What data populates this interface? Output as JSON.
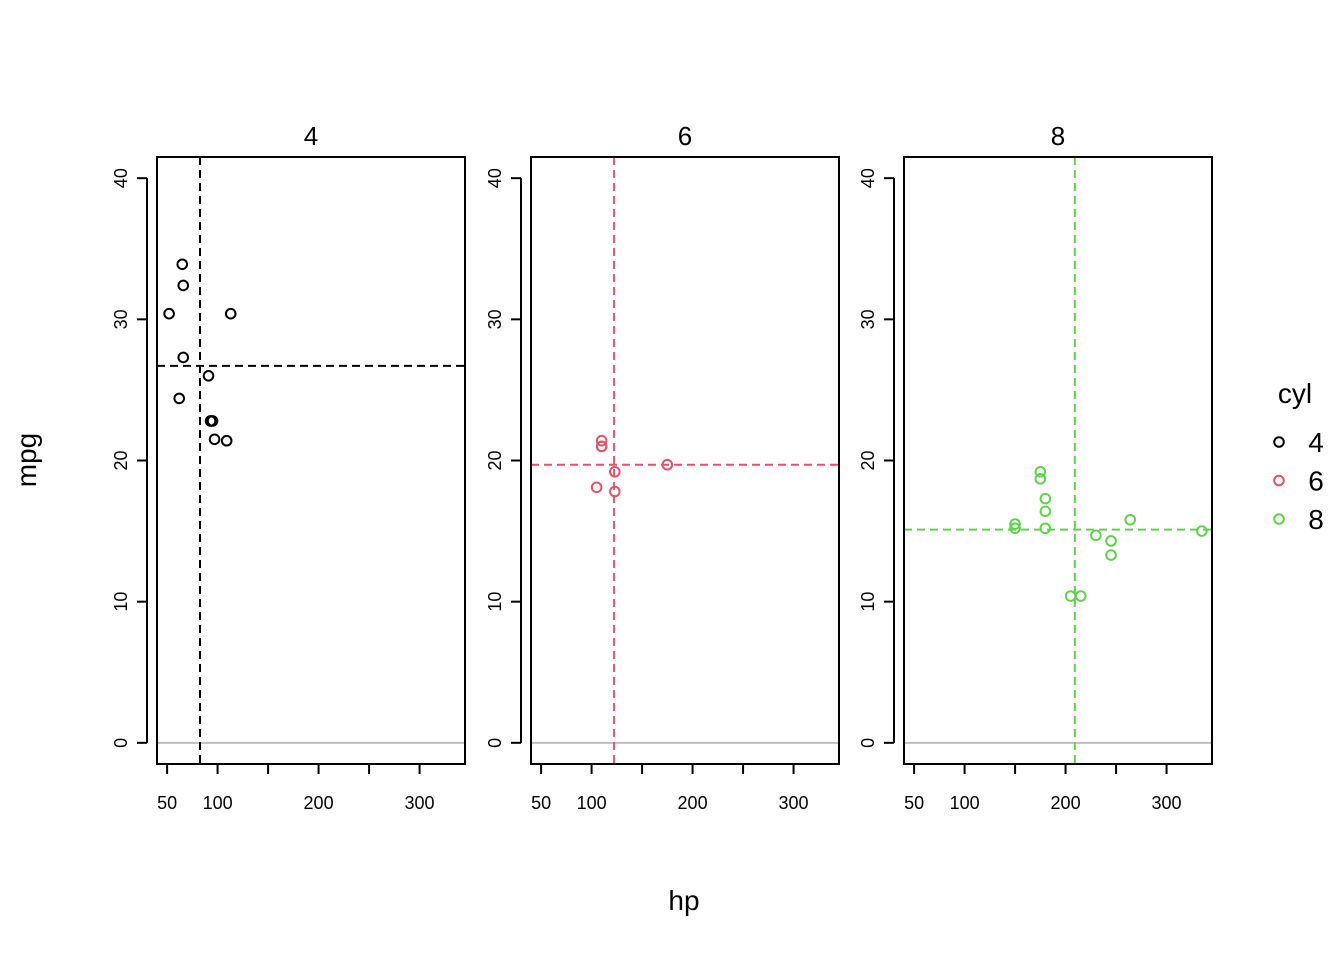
{
  "chart_data": {
    "type": "scatter",
    "xlabel": "hp",
    "ylabel": "mpg",
    "xlim": [
      40,
      345
    ],
    "ylim": [
      -1.5,
      41.5
    ],
    "x_ticks": [
      50,
      100,
      150,
      200,
      250,
      300
    ],
    "x_tick_labels": [
      "50",
      "100",
      "",
      "200",
      "",
      "300"
    ],
    "y_ticks": [
      0,
      10,
      20,
      30,
      40
    ],
    "y_tick_labels": [
      "0",
      "10",
      "20",
      "30",
      "40"
    ],
    "zero_line": {
      "y": 0,
      "color": "#bebebe"
    },
    "grid": false,
    "legend": {
      "title": "cyl",
      "position": "right",
      "entries": [
        {
          "label": "4",
          "color": "#000000"
        },
        {
          "label": "6",
          "color": "#DF536B"
        },
        {
          "label": "8",
          "color": "#61D04F"
        }
      ]
    },
    "panels": [
      {
        "title": "4",
        "color": "#000000",
        "mean_hp": 82.6,
        "mean_mpg": 26.7,
        "points": [
          [
            52,
            30.4
          ],
          [
            62,
            24.4
          ],
          [
            65,
            33.9
          ],
          [
            66,
            32.4
          ],
          [
            66,
            27.3
          ],
          [
            91,
            26.0
          ],
          [
            93,
            22.8
          ],
          [
            95,
            22.8
          ],
          [
            97,
            21.5
          ],
          [
            109,
            21.4
          ],
          [
            113,
            30.4
          ]
        ]
      },
      {
        "title": "6",
        "color": "#DF536B",
        "mean_hp": 122.3,
        "mean_mpg": 19.7,
        "points": [
          [
            105,
            18.1
          ],
          [
            110,
            21.0
          ],
          [
            110,
            21.4
          ],
          [
            110,
            21.0
          ],
          [
            123,
            19.2
          ],
          [
            123,
            17.8
          ],
          [
            175,
            19.7
          ]
        ]
      },
      {
        "title": "8",
        "color": "#61D04F",
        "mean_hp": 209.2,
        "mean_mpg": 15.1,
        "points": [
          [
            150,
            15.5
          ],
          [
            150,
            15.2
          ],
          [
            175,
            19.2
          ],
          [
            175,
            18.7
          ],
          [
            180,
            16.4
          ],
          [
            180,
            17.3
          ],
          [
            180,
            15.2
          ],
          [
            205,
            10.4
          ],
          [
            215,
            10.4
          ],
          [
            230,
            14.7
          ],
          [
            245,
            14.3
          ],
          [
            245,
            13.3
          ],
          [
            264,
            15.8
          ],
          [
            335,
            15.0
          ]
        ]
      }
    ]
  }
}
